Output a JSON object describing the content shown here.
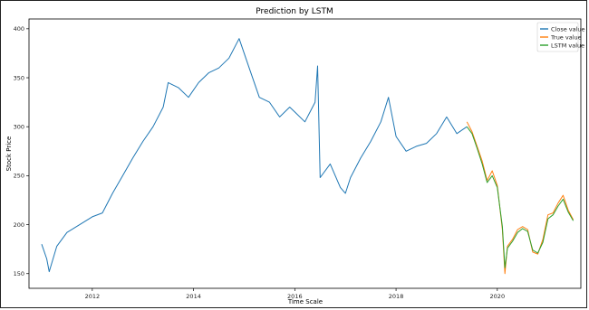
{
  "chart_data": {
    "type": "line",
    "title": "Prediction by LSTM",
    "xlabel": "Time Scale",
    "ylabel": "Stock Price",
    "xlim": [
      2010.75,
      2021.65
    ],
    "ylim": [
      135,
      410
    ],
    "x_ticks": [
      2012,
      2014,
      2016,
      2018,
      2020
    ],
    "y_ticks": [
      150,
      200,
      250,
      300,
      350,
      400
    ],
    "grid": false,
    "legend_position": "top-right",
    "series": [
      {
        "name": "Close value",
        "color": "#1f77b4",
        "x": [
          2011.0,
          2011.1,
          2011.15,
          2011.3,
          2011.5,
          2011.75,
          2012.0,
          2012.2,
          2012.4,
          2012.6,
          2012.8,
          2013.0,
          2013.2,
          2013.4,
          2013.5,
          2013.7,
          2013.9,
          2014.1,
          2014.3,
          2014.5,
          2014.7,
          2014.9,
          2015.1,
          2015.3,
          2015.5,
          2015.7,
          2015.9,
          2016.0,
          2016.2,
          2016.4,
          2016.45,
          2016.5,
          2016.7,
          2016.9,
          2017.0,
          2017.1,
          2017.3,
          2017.5,
          2017.7,
          2017.85,
          2018.0,
          2018.2,
          2018.4,
          2018.6,
          2018.8,
          2019.0,
          2019.2,
          2019.4
        ],
        "values": [
          180,
          165,
          152,
          178,
          192,
          200,
          208,
          212,
          232,
          250,
          268,
          285,
          300,
          320,
          345,
          340,
          330,
          345,
          355,
          360,
          370,
          390,
          360,
          330,
          325,
          310,
          320,
          315,
          305,
          325,
          362,
          248,
          262,
          238,
          232,
          248,
          268,
          285,
          305,
          330,
          290,
          275,
          280,
          283,
          293,
          310,
          293,
          300
        ]
      },
      {
        "name": "True value",
        "color": "#ff7f0e",
        "x": [
          2019.4,
          2019.5,
          2019.6,
          2019.7,
          2019.8,
          2019.9,
          2020.0,
          2020.1,
          2020.15,
          2020.2,
          2020.3,
          2020.4,
          2020.5,
          2020.6,
          2020.7,
          2020.8,
          2020.9,
          2021.0,
          2021.1,
          2021.2,
          2021.3,
          2021.4,
          2021.5
        ],
        "values": [
          305,
          295,
          280,
          265,
          245,
          255,
          240,
          195,
          150,
          178,
          185,
          195,
          198,
          195,
          172,
          170,
          185,
          210,
          212,
          222,
          230,
          215,
          205
        ]
      },
      {
        "name": "LSTM value",
        "color": "#2ca02c",
        "x": [
          2019.4,
          2019.5,
          2019.6,
          2019.7,
          2019.8,
          2019.9,
          2020.0,
          2020.1,
          2020.15,
          2020.2,
          2020.3,
          2020.4,
          2020.5,
          2020.6,
          2020.7,
          2020.8,
          2020.9,
          2021.0,
          2021.1,
          2021.2,
          2021.3,
          2021.4,
          2021.5
        ],
        "values": [
          300,
          293,
          278,
          262,
          243,
          250,
          238,
          198,
          156,
          176,
          183,
          192,
          196,
          193,
          174,
          171,
          182,
          206,
          210,
          219,
          226,
          213,
          204
        ]
      }
    ]
  }
}
